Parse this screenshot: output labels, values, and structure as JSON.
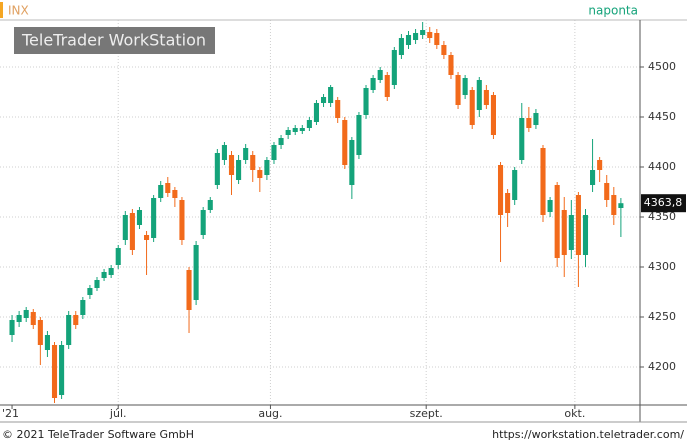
{
  "chart_data": {
    "type": "candlestick",
    "title": "INX",
    "interval": "naponta",
    "watermark": "TeleTrader WorkStation",
    "footer_left": "© 2021 TeleTrader Software GmbH",
    "footer_right": "https://workstation.teletrader.com/",
    "categories": [
      null,
      null,
      null,
      null,
      null,
      null,
      null,
      null,
      null,
      null,
      null,
      null,
      null,
      null,
      null,
      null,
      null,
      null,
      null,
      null,
      null,
      null,
      null,
      null,
      null,
      null,
      null,
      null,
      null,
      null,
      null,
      null,
      null,
      null,
      null,
      null,
      null,
      null,
      null,
      null,
      null,
      null,
      null,
      null,
      null,
      null,
      null,
      null,
      null,
      null,
      null,
      null,
      null,
      null,
      null,
      null,
      null,
      null,
      null,
      null,
      null,
      null,
      null,
      null,
      null,
      null,
      null,
      null,
      null,
      null,
      null,
      null,
      null,
      null,
      null,
      null,
      null,
      null,
      null,
      null,
      null,
      null,
      null,
      null,
      null,
      null,
      null
    ],
    "series": [
      {
        "up_color": "#14a37a",
        "down_color": "#f26a1b",
        "open": [
          4232,
          4245,
          4249,
          4255,
          4247,
          4217,
          4222,
          4172,
          4222,
          4252,
          4252,
          4272,
          4279,
          4289,
          4292,
          4302,
          4327,
          4354,
          4342,
          4332,
          4329,
          4369,
          4384,
          4377,
          4367,
          4297,
          4267,
          4332,
          4357,
          4382,
          4407,
          4412,
          4387,
          4407,
          4412,
          4397,
          4392,
          4407,
          4422,
          4432,
          4435,
          4436,
          4439,
          4445,
          4464,
          4464,
          4467,
          4447,
          4382,
          4412,
          4452,
          4477,
          4487,
          4492,
          4482,
          4512,
          4522,
          4527,
          4532,
          4535,
          4534,
          4522,
          4512,
          4492,
          4472,
          4477,
          4457,
          4477,
          4472,
          4402,
          4374,
          4367,
          4407,
          4449,
          4442,
          4419,
          4355,
          4382,
          4357,
          4317,
          4372,
          4312,
          4382,
          4407,
          4384,
          4372,
          4359
        ],
        "high": [
          4252,
          4256,
          4260,
          4258,
          4250,
          4236,
          4225,
          4226,
          4256,
          4256,
          4270,
          4282,
          4290,
          4298,
          4302,
          4322,
          4356,
          4358,
          4360,
          4336,
          4372,
          4386,
          4390,
          4380,
          4370,
          4300,
          4326,
          4360,
          4370,
          4418,
          4425,
          4416,
          4412,
          4423,
          4416,
          4400,
          4410,
          4425,
          4432,
          4440,
          4442,
          4442,
          4450,
          4467,
          4473,
          4482,
          4470,
          4450,
          4430,
          4455,
          4482,
          4492,
          4500,
          4495,
          4520,
          4533,
          4536,
          4538,
          4545,
          4540,
          4538,
          4526,
          4515,
          4495,
          4492,
          4480,
          4490,
          4482,
          4475,
          4405,
          4378,
          4400,
          4464,
          4460,
          4458,
          4422,
          4370,
          4385,
          4370,
          4367,
          4375,
          4358,
          4428,
          4410,
          4392,
          4380,
          4369
        ],
        "low": [
          4225,
          4240,
          4245,
          4238,
          4202,
          4210,
          4164,
          4168,
          4218,
          4238,
          4248,
          4268,
          4276,
          4286,
          4289,
          4298,
          4322,
          4312,
          4338,
          4292,
          4325,
          4365,
          4370,
          4360,
          4322,
          4234,
          4262,
          4328,
          4354,
          4378,
          4402,
          4372,
          4383,
          4403,
          4385,
          4375,
          4387,
          4403,
          4418,
          4428,
          4432,
          4433,
          4436,
          4442,
          4460,
          4460,
          4444,
          4398,
          4368,
          4408,
          4448,
          4474,
          4484,
          4466,
          4478,
          4508,
          4518,
          4523,
          4528,
          4524,
          4518,
          4508,
          4488,
          4458,
          4468,
          4438,
          4450,
          4458,
          4428,
          4305,
          4340,
          4362,
          4403,
          4435,
          4438,
          4345,
          4350,
          4300,
          4290,
          4308,
          4280,
          4300,
          4375,
          4385,
          4360,
          4342,
          4330
        ],
        "close": [
          4247,
          4252,
          4257,
          4242,
          4222,
          4232,
          4169,
          4222,
          4252,
          4242,
          4267,
          4279,
          4287,
          4295,
          4299,
          4319,
          4352,
          4317,
          4357,
          4327,
          4369,
          4382,
          4374,
          4369,
          4327,
          4257,
          4322,
          4357,
          4367,
          4414,
          4422,
          4392,
          4407,
          4419,
          4397,
          4389,
          4407,
          4422,
          4429,
          4437,
          4439,
          4439,
          4447,
          4464,
          4470,
          4480,
          4449,
          4402,
          4427,
          4452,
          4479,
          4489,
          4497,
          4470,
          4517,
          4529,
          4532,
          4534,
          4537,
          4529,
          4522,
          4512,
          4492,
          4462,
          4489,
          4442,
          4487,
          4462,
          4432,
          4352,
          4354,
          4397,
          4449,
          4439,
          4454,
          4352,
          4367,
          4309,
          4312,
          4352,
          4312,
          4352,
          4397,
          4397,
          4367,
          4352,
          4363.8
        ]
      }
    ],
    "last_price": {
      "value": 4363.8,
      "label": "4363,8"
    },
    "xlim": [
      -1.7,
      88.7
    ],
    "xticks": [
      {
        "value": 0,
        "label": "'21"
      },
      {
        "value": 15,
        "label": "júl."
      },
      {
        "value": 36.5,
        "label": "aug."
      },
      {
        "value": 58.5,
        "label": "szept."
      },
      {
        "value": 79.5,
        "label": "okt."
      }
    ],
    "ylim": [
      4162,
      4547
    ],
    "yticks": [
      4200,
      4250,
      4300,
      4350,
      4400,
      4450,
      4500
    ],
    "grid": true
  }
}
